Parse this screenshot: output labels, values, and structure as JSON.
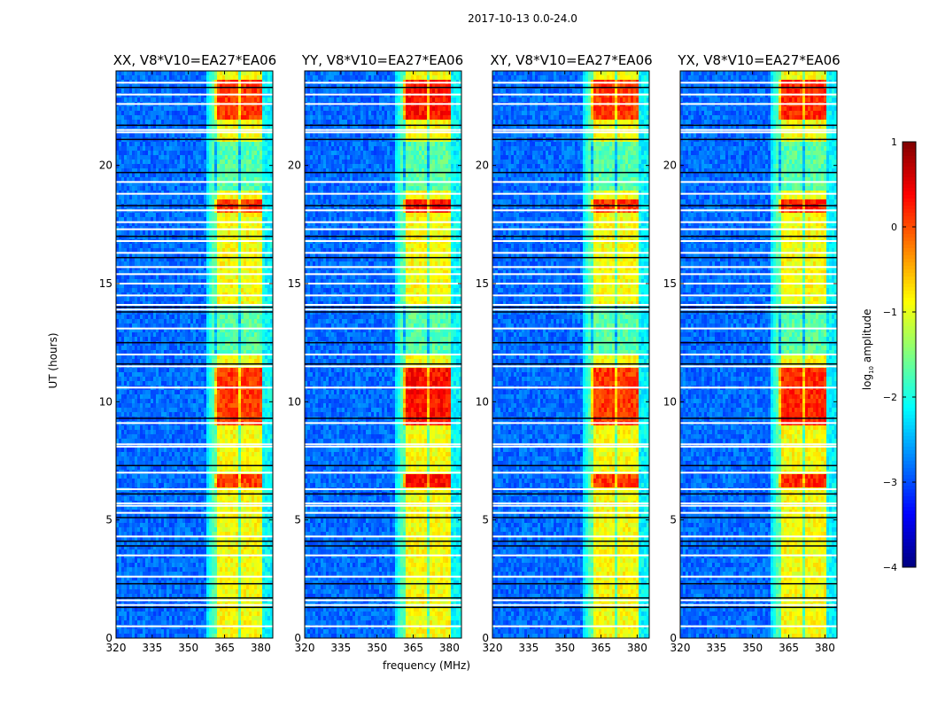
{
  "figure": {
    "suptitle": "2017-10-13 0.0-24.0",
    "xlabel": "frequency (MHz)",
    "ylabel": "UT (hours)",
    "colorbar_label": "log₁₀ amplitude"
  },
  "chart_data": [
    {
      "type": "heatmap",
      "title": "XX, V8*V10=EA27*EA06",
      "polarization": "XX",
      "xlabel": "",
      "ylabel": "UT (hours)",
      "xlim": [
        320,
        385
      ],
      "ylim": [
        0,
        24
      ],
      "xticks": [
        320,
        335,
        350,
        365,
        380
      ],
      "yticks": [
        0,
        5,
        10,
        15,
        20
      ],
      "signal_band_mhz": [
        361,
        381
      ],
      "peak_log_amplitude": 0.4
    },
    {
      "type": "heatmap",
      "title": "YY, V8*V10=EA27*EA06",
      "polarization": "YY",
      "xlabel": "frequency (MHz)",
      "ylabel": "",
      "xlim": [
        320,
        385
      ],
      "ylim": [
        0,
        24
      ],
      "xticks": [
        320,
        335,
        350,
        365,
        380
      ],
      "yticks": [
        0,
        5,
        10,
        15,
        20
      ],
      "signal_band_mhz": [
        361,
        381
      ],
      "peak_log_amplitude": 0.6
    },
    {
      "type": "heatmap",
      "title": "XY, V8*V10=EA27*EA06",
      "polarization": "XY",
      "xlabel": "",
      "ylabel": "",
      "xlim": [
        320,
        385
      ],
      "ylim": [
        0,
        24
      ],
      "xticks": [
        320,
        335,
        350,
        365,
        380
      ],
      "yticks": [
        0,
        5,
        10,
        15,
        20
      ],
      "signal_band_mhz": [
        361,
        381
      ],
      "peak_log_amplitude": 0.4
    },
    {
      "type": "heatmap",
      "title": "YX, V8*V10=EA27*EA06",
      "polarization": "YX",
      "xlabel": "",
      "ylabel": "",
      "xlim": [
        320,
        385
      ],
      "ylim": [
        0,
        24
      ],
      "xticks": [
        320,
        335,
        350,
        365,
        380
      ],
      "yticks": [
        0,
        5,
        10,
        15,
        20
      ],
      "signal_band_mhz": [
        361,
        381
      ],
      "peak_log_amplitude": 0.5
    }
  ],
  "colorbar": {
    "colormap": "jet",
    "range": [
      -4,
      1
    ],
    "ticks": [
      1,
      0,
      -1,
      -2,
      -3,
      -4
    ],
    "tick_labels": [
      "1",
      "0",
      "−1",
      "−2",
      "−3",
      "−4"
    ]
  },
  "flagged_ut_hours_white": [
    0.5,
    1.4,
    1.6,
    2.6,
    3.5,
    4.3,
    5.3,
    5.6,
    5.7,
    6.3,
    7.0,
    8.1,
    8.2,
    9.1,
    10.6,
    11.5,
    12.0,
    13.1,
    13.9,
    14.1,
    14.5,
    15.0,
    15.4,
    15.7,
    16.3,
    16.8,
    17.3,
    17.6,
    18.1,
    18.8,
    19.3,
    21.4,
    21.5,
    22.6,
    23.0,
    23.5
  ],
  "dark_ut_hours": [
    1.3,
    1.7,
    2.3,
    3.9,
    4.1,
    5.1,
    6.1,
    7.3,
    9.3,
    11.6,
    12.5,
    13.8,
    14.0,
    16.1,
    17.0,
    18.3,
    19.7,
    21.1,
    21.7,
    23.3
  ]
}
